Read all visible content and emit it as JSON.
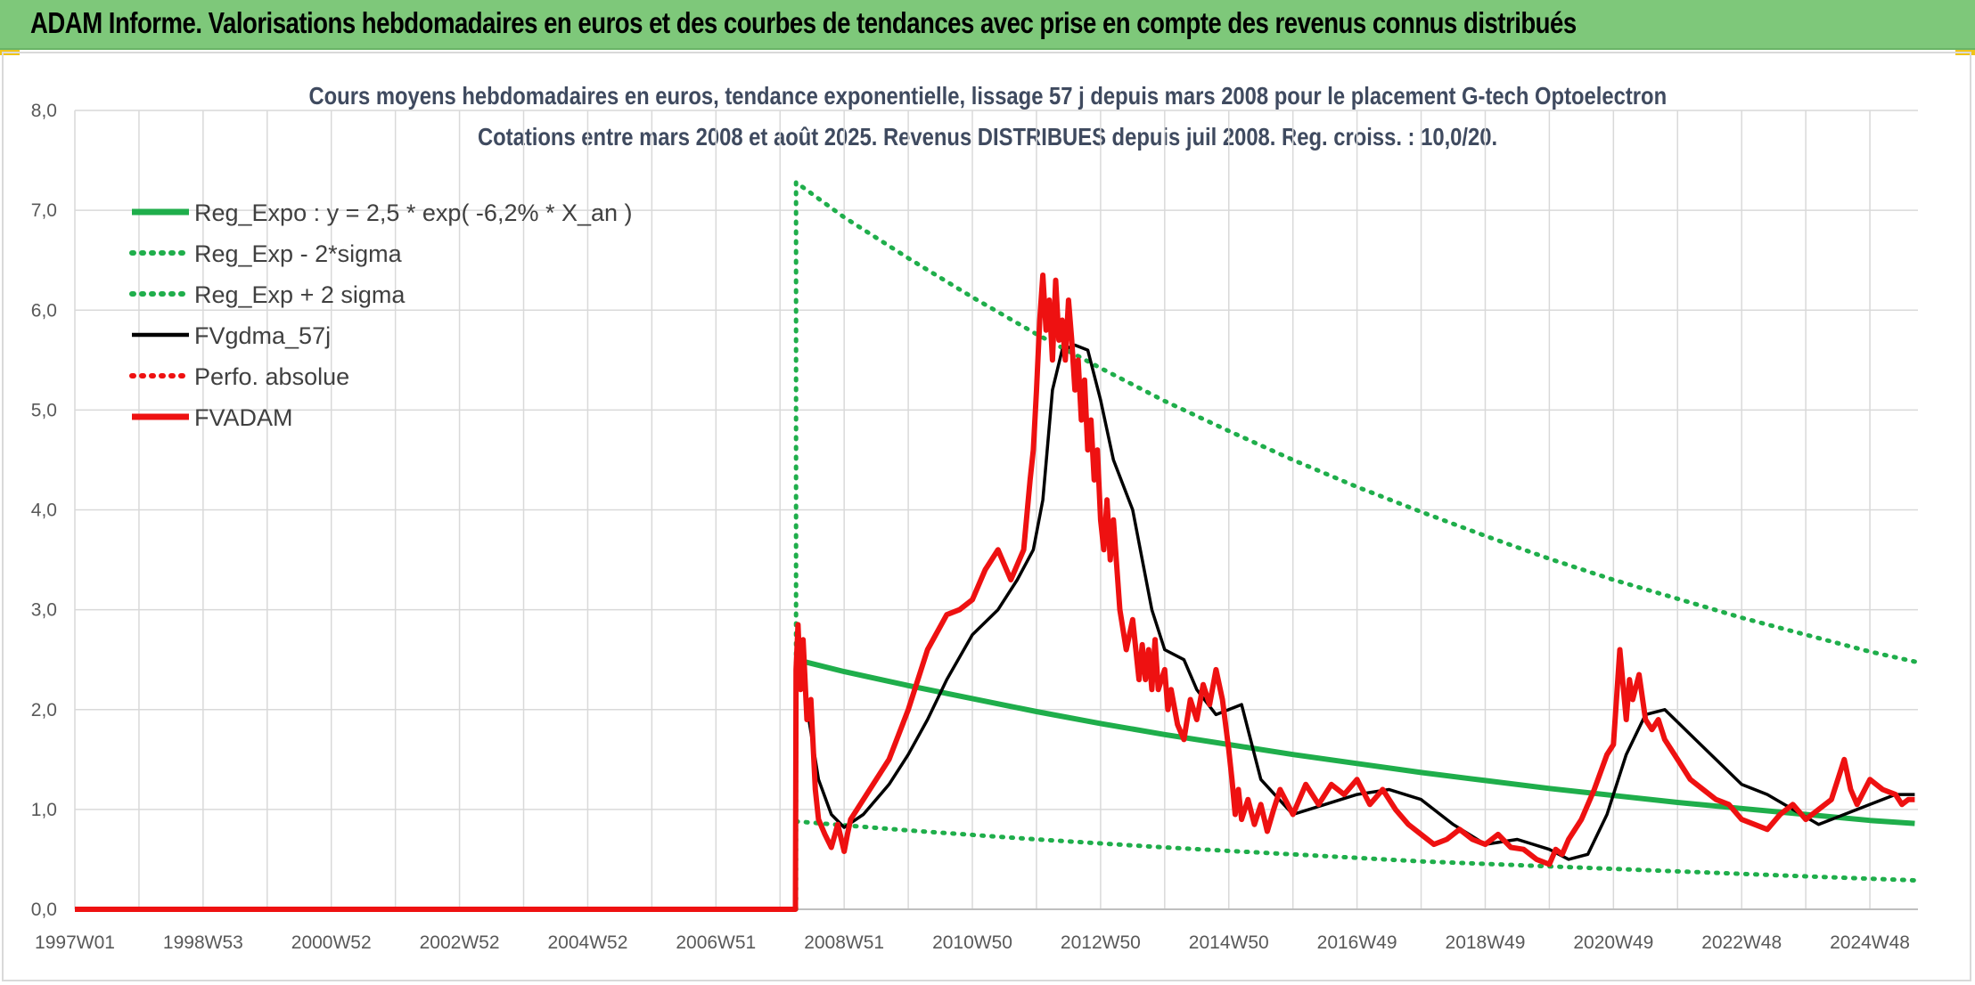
{
  "banner": {
    "title": "ADAM Informe. Valorisations hebdomadaires en euros et des courbes de tendances avec prise en compte des revenus connus distribués"
  },
  "chart": {
    "title_line1": "Cours moyens hebdomadaires en euros, tendance exponentielle, lissage 57 j depuis mars 2008 pour le placement G-tech Optoelectron",
    "title_line2": "Cotations entre mars 2008 et août 2025. Revenus DISTRIBUES depuis juil 2008. Reg. croiss. : 10,0/20."
  },
  "colors": {
    "green": "#1fae4b",
    "black": "#000000",
    "red": "#ee1111",
    "grid": "#d9d9d9",
    "banner": "#7ec87a",
    "title": "#3f4a5f"
  },
  "chart_data": {
    "type": "line",
    "ylim": [
      0,
      8
    ],
    "yticks": [
      "0,0",
      "1,0",
      "2,0",
      "3,0",
      "4,0",
      "5,0",
      "6,0",
      "7,0",
      "8,0"
    ],
    "xlim": [
      1997.0,
      2025.75
    ],
    "xticks": [
      {
        "label": "1997W01",
        "x": 1997.0
      },
      {
        "label": "1998W53",
        "x": 1999.0
      },
      {
        "label": "2000W52",
        "x": 2001.0
      },
      {
        "label": "2002W52",
        "x": 2003.0
      },
      {
        "label": "2004W52",
        "x": 2005.0
      },
      {
        "label": "2006W51",
        "x": 2007.0
      },
      {
        "label": "2008W51",
        "x": 2009.0
      },
      {
        "label": "2010W50",
        "x": 2011.0
      },
      {
        "label": "2012W50",
        "x": 2013.0
      },
      {
        "label": "2014W50",
        "x": 2015.0
      },
      {
        "label": "2016W49",
        "x": 2017.0
      },
      {
        "label": "2018W49",
        "x": 2019.0
      },
      {
        "label": "2020W49",
        "x": 2021.0
      },
      {
        "label": "2022W48",
        "x": 2023.0
      },
      {
        "label": "2024W48",
        "x": 2025.0
      }
    ],
    "grid": true,
    "legend_position": "top-left",
    "series": [
      {
        "name": "Reg_Expo : y = 2,5 * exp( -6,2% *  X_an )",
        "style": "solid-thick",
        "color": "#1fae4b",
        "x": [
          2008.25,
          2009,
          2010,
          2011,
          2012,
          2013,
          2014,
          2015,
          2016,
          2017,
          2018,
          2019,
          2020,
          2021,
          2022,
          2023,
          2024,
          2025,
          2025.7
        ],
        "y": [
          2.5,
          2.38,
          2.24,
          2.11,
          1.98,
          1.86,
          1.75,
          1.65,
          1.55,
          1.46,
          1.37,
          1.29,
          1.21,
          1.14,
          1.07,
          1.01,
          0.95,
          0.89,
          0.86
        ]
      },
      {
        "name": "Reg_Exp - 2*sigma",
        "style": "dotted",
        "color": "#1fae4b",
        "x": [
          2008.25,
          2010,
          2012,
          2014,
          2016,
          2018,
          2020,
          2022,
          2024,
          2025.7
        ],
        "y": [
          0.88,
          0.79,
          0.7,
          0.62,
          0.55,
          0.48,
          0.43,
          0.38,
          0.33,
          0.29
        ]
      },
      {
        "name": "Reg_Exp + 2 sigma",
        "style": "dotted",
        "color": "#1fae4b",
        "x": [
          2008.25,
          2008.25,
          2009,
          2010,
          2011,
          2012,
          2013,
          2014,
          2015,
          2016,
          2017,
          2018,
          2019,
          2020,
          2021,
          2022,
          2023,
          2024,
          2025,
          2025.7
        ],
        "y": [
          0.0,
          7.28,
          6.93,
          6.52,
          6.13,
          5.76,
          5.42,
          5.09,
          4.79,
          4.5,
          4.23,
          3.98,
          3.74,
          3.51,
          3.3,
          3.11,
          2.92,
          2.75,
          2.58,
          2.48
        ]
      },
      {
        "name": "FVgdma_57j",
        "style": "solid",
        "color": "#000000",
        "x": [
          2008.25,
          2008.32,
          2008.45,
          2008.6,
          2008.8,
          2009.0,
          2009.3,
          2009.7,
          2010.0,
          2010.3,
          2010.6,
          2011.0,
          2011.4,
          2011.7,
          2011.95,
          2012.1,
          2012.25,
          2012.4,
          2012.6,
          2012.8,
          2013.0,
          2013.2,
          2013.5,
          2013.8,
          2014.0,
          2014.3,
          2014.5,
          2014.8,
          2015.0,
          2015.2,
          2015.5,
          2016.0,
          2016.5,
          2017.0,
          2017.5,
          2018.0,
          2018.5,
          2019.0,
          2019.5,
          2020.0,
          2020.3,
          2020.6,
          2020.9,
          2021.2,
          2021.5,
          2021.8,
          2022.2,
          2022.6,
          2023.0,
          2023.4,
          2023.8,
          2024.2,
          2024.6,
          2025.0,
          2025.4,
          2025.7
        ],
        "y": [
          2.3,
          2.45,
          1.9,
          1.3,
          0.95,
          0.82,
          0.95,
          1.25,
          1.55,
          1.9,
          2.3,
          2.75,
          3.0,
          3.3,
          3.6,
          4.1,
          5.2,
          5.6,
          5.65,
          5.6,
          5.1,
          4.5,
          4.0,
          3.0,
          2.6,
          2.5,
          2.2,
          1.95,
          2.0,
          2.05,
          1.3,
          0.95,
          1.05,
          1.15,
          1.2,
          1.1,
          0.85,
          0.65,
          0.7,
          0.6,
          0.5,
          0.55,
          0.95,
          1.55,
          1.95,
          2.0,
          1.75,
          1.5,
          1.25,
          1.15,
          1.0,
          0.85,
          0.95,
          1.05,
          1.15,
          1.15
        ]
      },
      {
        "name": "Perfo. absolue",
        "style": "dotted",
        "color": "#ee1111",
        "x": [],
        "y": []
      },
      {
        "name": "FVADAM",
        "style": "solid-thick",
        "color": "#ee1111",
        "x": [
          1997.0,
          2008.24,
          2008.25,
          2008.28,
          2008.32,
          2008.36,
          2008.42,
          2008.48,
          2008.55,
          2008.6,
          2008.7,
          2008.8,
          2008.9,
          2009.0,
          2009.05,
          2009.1,
          2009.2,
          2009.4,
          2009.7,
          2010.0,
          2010.3,
          2010.6,
          2010.8,
          2011.0,
          2011.2,
          2011.4,
          2011.6,
          2011.8,
          2011.9,
          2011.95,
          2012.0,
          2012.05,
          2012.1,
          2012.15,
          2012.2,
          2012.25,
          2012.3,
          2012.35,
          2012.4,
          2012.45,
          2012.5,
          2012.55,
          2012.6,
          2012.65,
          2012.7,
          2012.75,
          2012.8,
          2012.85,
          2012.9,
          2012.95,
          2013.0,
          2013.05,
          2013.1,
          2013.15,
          2013.2,
          2013.3,
          2013.4,
          2013.5,
          2013.6,
          2013.65,
          2013.7,
          2013.75,
          2013.8,
          2013.85,
          2013.9,
          2014.0,
          2014.05,
          2014.1,
          2014.2,
          2014.3,
          2014.4,
          2014.5,
          2014.6,
          2014.7,
          2014.8,
          2014.9,
          2015.0,
          2015.05,
          2015.1,
          2015.15,
          2015.2,
          2015.3,
          2015.4,
          2015.5,
          2015.6,
          2015.7,
          2015.8,
          2016.0,
          2016.2,
          2016.4,
          2016.6,
          2016.8,
          2017.0,
          2017.2,
          2017.4,
          2017.6,
          2017.8,
          2018.0,
          2018.2,
          2018.4,
          2018.6,
          2018.8,
          2019.0,
          2019.2,
          2019.4,
          2019.6,
          2019.8,
          2020.0,
          2020.1,
          2020.2,
          2020.3,
          2020.5,
          2020.7,
          2020.9,
          2021.0,
          2021.1,
          2021.2,
          2021.25,
          2021.3,
          2021.4,
          2021.5,
          2021.6,
          2021.7,
          2021.8,
          2022.0,
          2022.2,
          2022.4,
          2022.6,
          2022.8,
          2023.0,
          2023.2,
          2023.4,
          2023.6,
          2023.8,
          2024.0,
          2024.2,
          2024.4,
          2024.6,
          2024.7,
          2024.8,
          2025.0,
          2025.2,
          2025.4,
          2025.5,
          2025.6,
          2025.7
        ],
        "y": [
          0.0,
          0.0,
          2.4,
          2.85,
          2.2,
          2.7,
          1.9,
          2.1,
          1.2,
          0.9,
          0.75,
          0.62,
          0.85,
          0.58,
          0.75,
          0.9,
          1.0,
          1.2,
          1.5,
          2.0,
          2.6,
          2.95,
          3.0,
          3.1,
          3.4,
          3.6,
          3.3,
          3.6,
          4.3,
          4.6,
          5.2,
          5.9,
          6.35,
          5.8,
          6.1,
          5.5,
          6.3,
          5.7,
          5.9,
          5.5,
          6.1,
          5.7,
          5.2,
          5.5,
          4.9,
          5.3,
          4.6,
          4.9,
          4.3,
          4.6,
          3.9,
          3.6,
          4.1,
          3.5,
          3.9,
          3.0,
          2.6,
          2.9,
          2.3,
          2.65,
          2.3,
          2.6,
          2.2,
          2.7,
          2.2,
          2.4,
          2.0,
          2.2,
          1.85,
          1.7,
          2.1,
          1.9,
          2.25,
          2.05,
          2.4,
          2.1,
          1.6,
          1.3,
          0.95,
          1.2,
          0.9,
          1.1,
          0.85,
          1.05,
          0.78,
          1.0,
          1.2,
          0.95,
          1.25,
          1.05,
          1.25,
          1.15,
          1.3,
          1.05,
          1.2,
          1.0,
          0.85,
          0.75,
          0.65,
          0.7,
          0.8,
          0.7,
          0.65,
          0.75,
          0.62,
          0.6,
          0.5,
          0.45,
          0.6,
          0.55,
          0.7,
          0.9,
          1.2,
          1.55,
          1.65,
          2.6,
          1.9,
          2.3,
          2.1,
          2.35,
          1.9,
          1.8,
          1.9,
          1.7,
          1.5,
          1.3,
          1.2,
          1.1,
          1.05,
          0.9,
          0.85,
          0.8,
          0.95,
          1.05,
          0.9,
          1.0,
          1.1,
          1.5,
          1.2,
          1.05,
          1.3,
          1.2,
          1.15,
          1.05,
          1.1,
          1.1
        ]
      }
    ]
  }
}
